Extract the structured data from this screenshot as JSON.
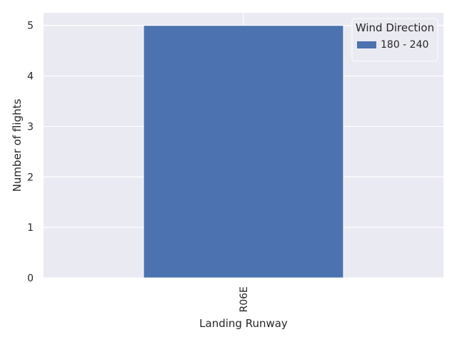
{
  "chart_data": {
    "type": "bar",
    "title": "",
    "xlabel": "Landing Runway",
    "ylabel": "Number of flights",
    "categories": [
      "R06E"
    ],
    "series": [
      {
        "name": "180 - 240",
        "values": [
          5
        ],
        "color": "#4c72b0"
      }
    ],
    "ylim": [
      0,
      5.25
    ],
    "yticks": [
      0,
      1,
      2,
      3,
      4,
      5
    ],
    "grid": true,
    "background": "#eaeaf2",
    "grid_color": "#ffffff",
    "legend": {
      "title": "Wind Direction",
      "placement": "top-right"
    }
  }
}
